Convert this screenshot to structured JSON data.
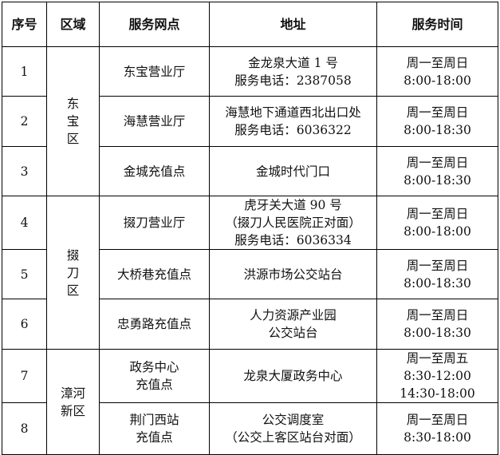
{
  "headers": [
    "序号",
    "区域",
    "服务网点",
    "地址",
    "服务时间"
  ],
  "regions": [
    {
      "name": [
        "东",
        "宝",
        "区"
      ]
    },
    {
      "name": [
        "掇",
        "刀",
        "区"
      ]
    },
    {
      "name": [
        "漳河",
        "新区"
      ]
    }
  ],
  "rows": [
    {
      "no": "1",
      "site": [
        "东宝营业厅"
      ],
      "address": [
        "金龙泉大道 1 号",
        "服务电话：2387058"
      ],
      "hours": [
        "周一至周日",
        "8:00-18:00"
      ]
    },
    {
      "no": "2",
      "site": [
        "海慧营业厅"
      ],
      "address": [
        "海慧地下通道西北出口处",
        "服务电话：6036322"
      ],
      "hours": [
        "周一至周日",
        "8:00-18:30"
      ]
    },
    {
      "no": "3",
      "site": [
        "金城充值点"
      ],
      "address": [
        "金城时代门口"
      ],
      "hours": [
        "周一至周日",
        "8:00-18:30"
      ]
    },
    {
      "no": "4",
      "site": [
        "掇刀营业厅"
      ],
      "address": [
        "虎牙关大道 90 号",
        "（掇刀人民医院正对面）",
        "服务电话：6036334"
      ],
      "hours": [
        "周一至周日",
        "8:00-18:00"
      ]
    },
    {
      "no": "5",
      "site": [
        "大桥巷充值点"
      ],
      "address": [
        "洪源市场公交站台"
      ],
      "hours": [
        "周一至周日",
        "8:00-18:30"
      ]
    },
    {
      "no": "6",
      "site": [
        "忠勇路充值点"
      ],
      "address": [
        "人力资源产业园",
        "公交站台"
      ],
      "hours": [
        "周一至周日",
        "8:00-18:30"
      ]
    },
    {
      "no": "7",
      "site": [
        "政务中心",
        "充值点"
      ],
      "address": [
        "龙泉大厦政务中心"
      ],
      "hours": [
        "周一至周五",
        "8:30-12:00",
        "14:30-18:00"
      ]
    },
    {
      "no": "8",
      "site": [
        "荆门西站",
        "充值点"
      ],
      "address": [
        "公交调度室",
        "（公交上客区站台对面）"
      ],
      "hours": [
        "周一至周日",
        "8:30-18:00"
      ]
    }
  ]
}
